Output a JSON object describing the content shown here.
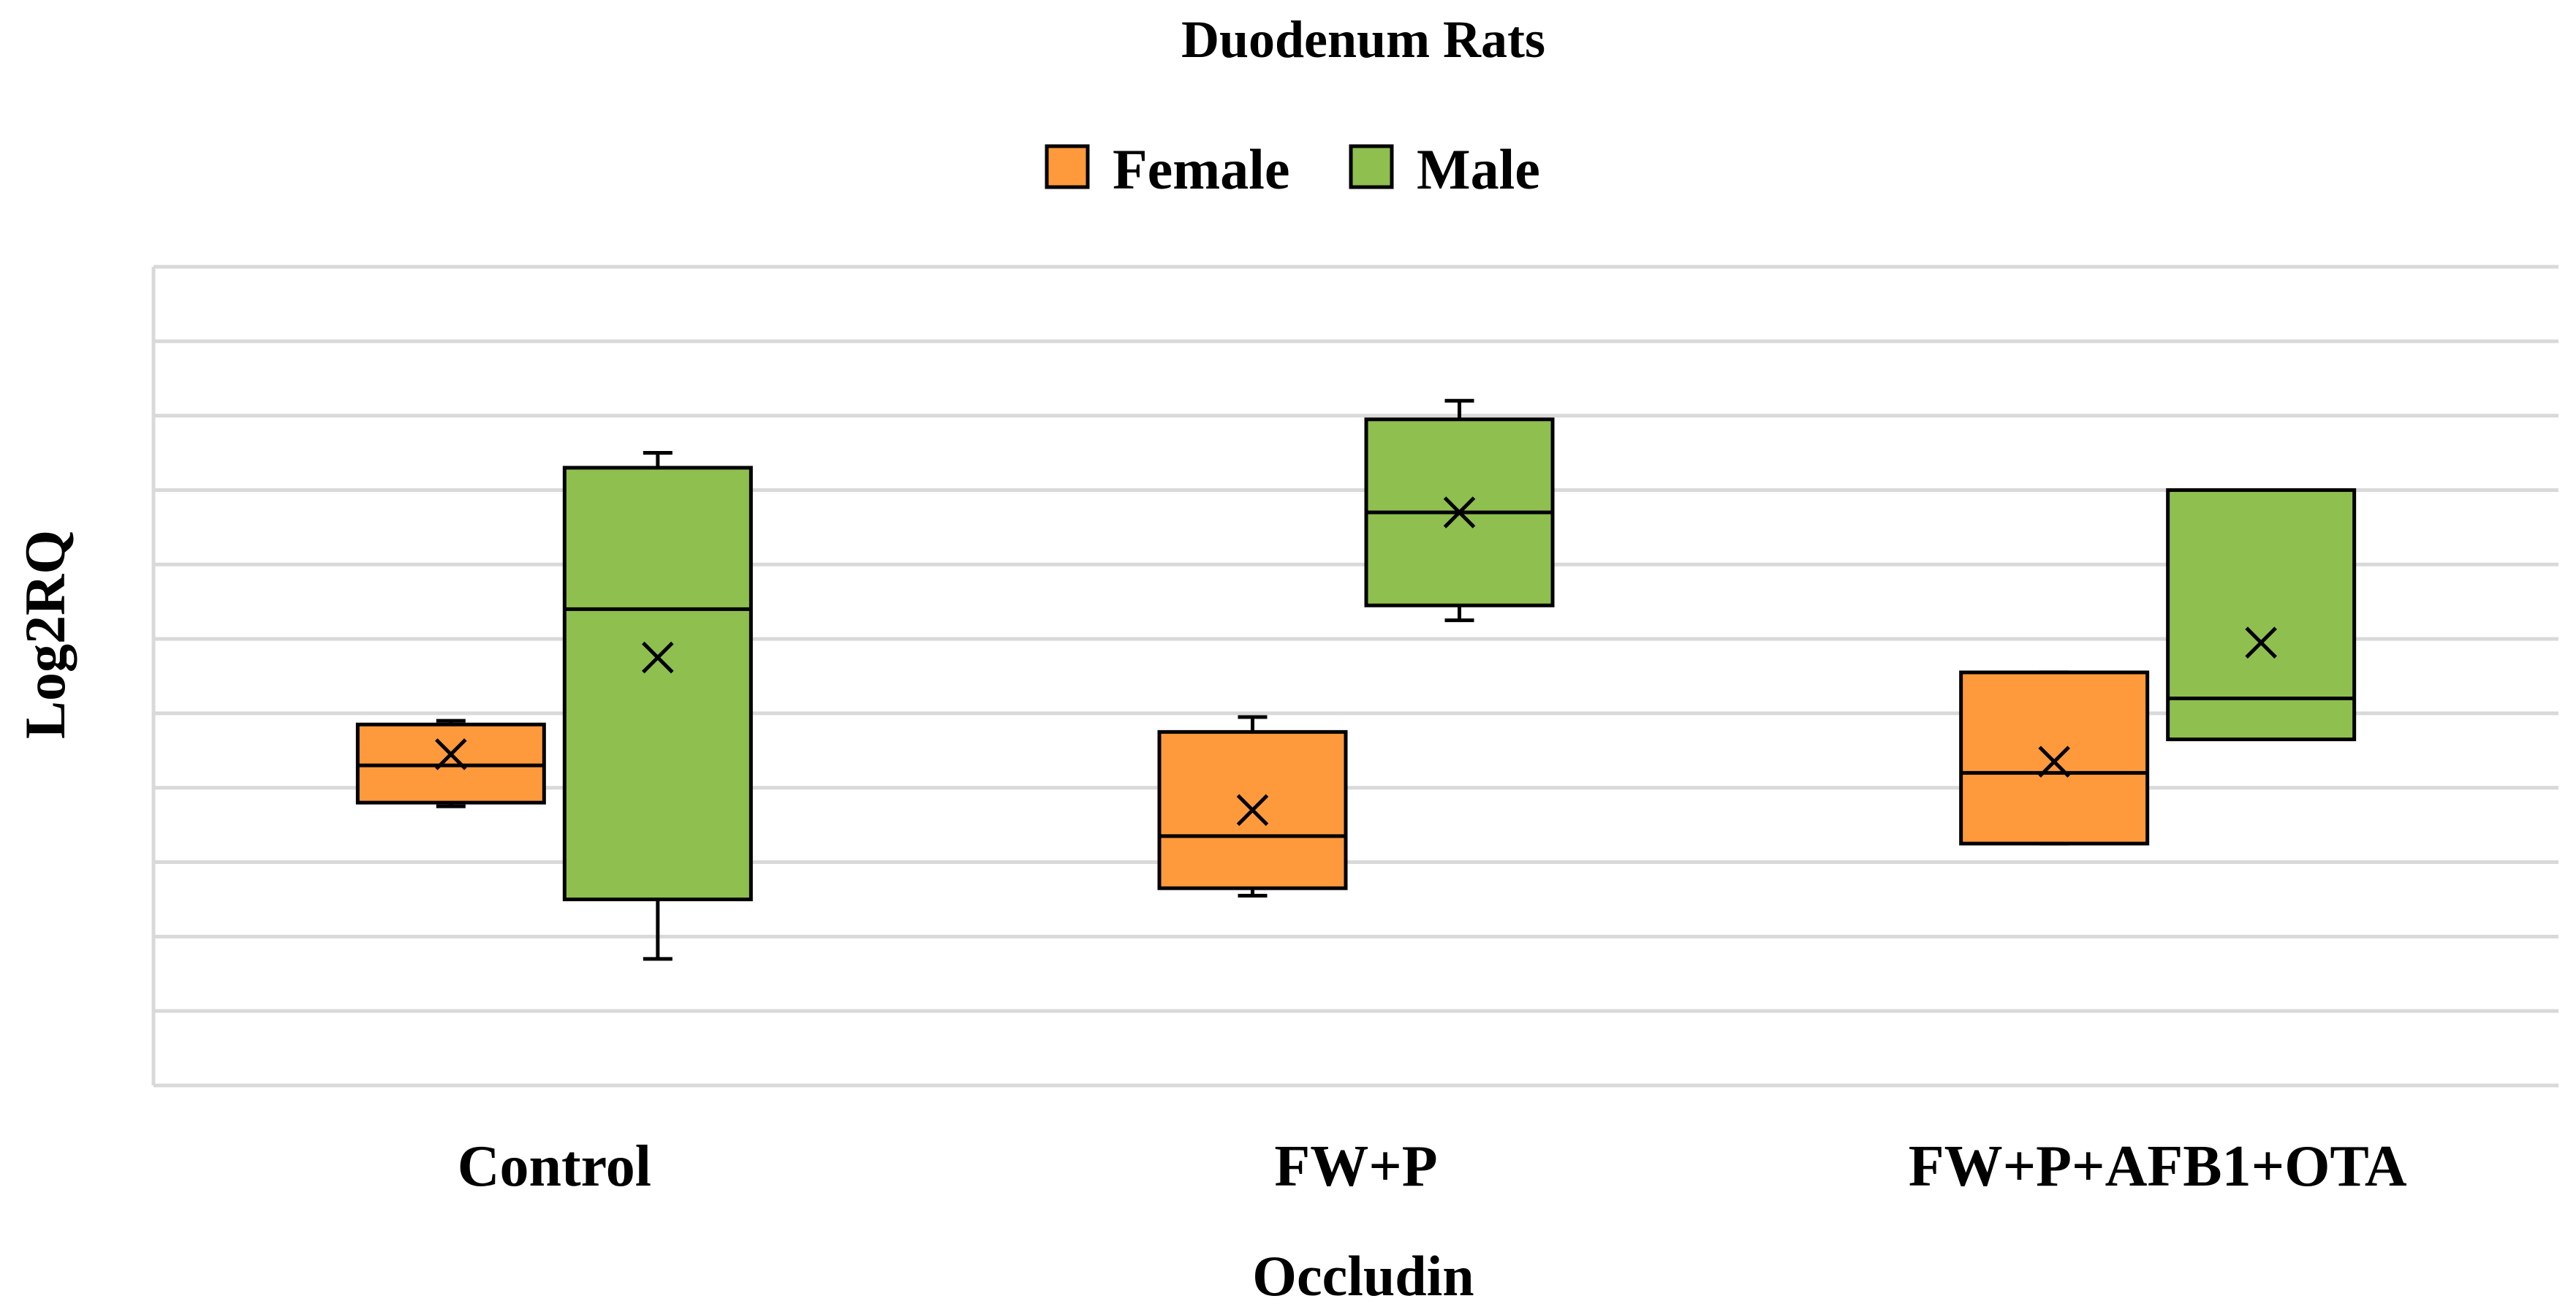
{
  "chart_data": {
    "type": "box",
    "title": "Duodenum Rats",
    "xlabel": "Occludin",
    "ylabel": "Log2RQ",
    "categories": [
      "Control",
      "FW+P",
      "FW+P+AFB1+OTA"
    ],
    "grid": true,
    "legend_position": "top-center",
    "ylim": [
      0,
      11
    ],
    "y_tick_labels_visible": false,
    "series": [
      {
        "name": "Female",
        "color": "#FF9A3C",
        "boxes": [
          {
            "category": "Control",
            "min": 3.75,
            "q1": 3.8,
            "median": 4.3,
            "q3": 4.85,
            "max": 4.9,
            "mean": 4.45
          },
          {
            "category": "FW+P",
            "min": 2.55,
            "q1": 2.65,
            "median": 3.35,
            "q3": 4.75,
            "max": 4.95,
            "mean": 3.7
          },
          {
            "category": "FW+P+AFB1+OTA",
            "min": 3.25,
            "q1": 3.25,
            "median": 4.2,
            "q3": 5.55,
            "max": 5.55,
            "mean": 4.35
          }
        ]
      },
      {
        "name": "Male",
        "color": "#8FBF4F",
        "boxes": [
          {
            "category": "Control",
            "min": 1.7,
            "q1": 2.5,
            "median": 6.4,
            "q3": 8.3,
            "max": 8.5,
            "mean": 5.75
          },
          {
            "category": "FW+P",
            "min": 6.25,
            "q1": 6.45,
            "median": 7.7,
            "q3": 8.95,
            "max": 9.2,
            "mean": 7.7
          },
          {
            "category": "FW+P+AFB1+OTA",
            "min": 4.65,
            "q1": 4.65,
            "median": 5.2,
            "q3": 8.0,
            "max": 8.0,
            "mean": 5.95
          }
        ]
      }
    ]
  }
}
